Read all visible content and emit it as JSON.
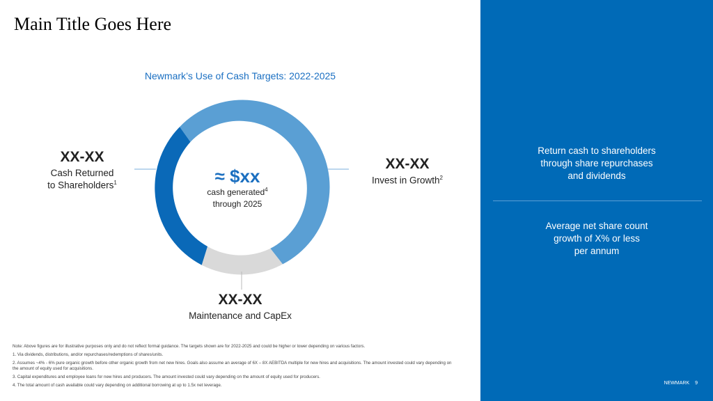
{
  "title": "Main Title Goes Here",
  "subtitle": "Newmark’s Use of Cash Targets: 2022-2025",
  "center": {
    "value": "≈ $xx",
    "line1": "cash generated",
    "line1_sup": "4",
    "line2": "through 2025"
  },
  "segments": [
    {
      "label_value": "XX-XX",
      "label_line1": "Cash Returned",
      "label_line2": "to Shareholders",
      "sup": "1",
      "color": "#0a69b8"
    },
    {
      "label_value": "XX-XX",
      "label_line1": "Invest in Growth",
      "sup": "2",
      "color": "#5a9fd4"
    },
    {
      "label_value": "XX-XX",
      "label_line1": "Maintenance and CapEx",
      "color": "#d9d9d9"
    }
  ],
  "notes": [
    "Note: Above figures are for illustrative purposes only and do not reflect formal guidance. The targets shown are for 2022-2025 and could be higher or lower depending on various factors.",
    "1. Via dividends, distributions, and/or repurchases/redemptions of shares/units.",
    "2. Assumes ~4% - 6% pure organic growth before other organic growth from net new hires. Goals also assume an average of 6X – 8X AEBITDA multiple for new hires and acquisitions. The amount invested could vary depending on the amount of equity used for acquisitions.",
    "3. Capital expenditures and employee loans for new hires and producers. The amount invested could vary depending on the amount of equity used for producers.",
    "4. The total amount of cash available could vary depending on additional borrowing at up to 1.5x net leverage."
  ],
  "panel": {
    "block1": [
      "Return cash to shareholders",
      "through share repurchases",
      "and dividends"
    ],
    "block2": [
      "Average net share count",
      "growth of X% or less",
      "per annum"
    ],
    "background": "#006ab7"
  },
  "footer": {
    "brand": "NEWMARK",
    "page": "9"
  }
}
